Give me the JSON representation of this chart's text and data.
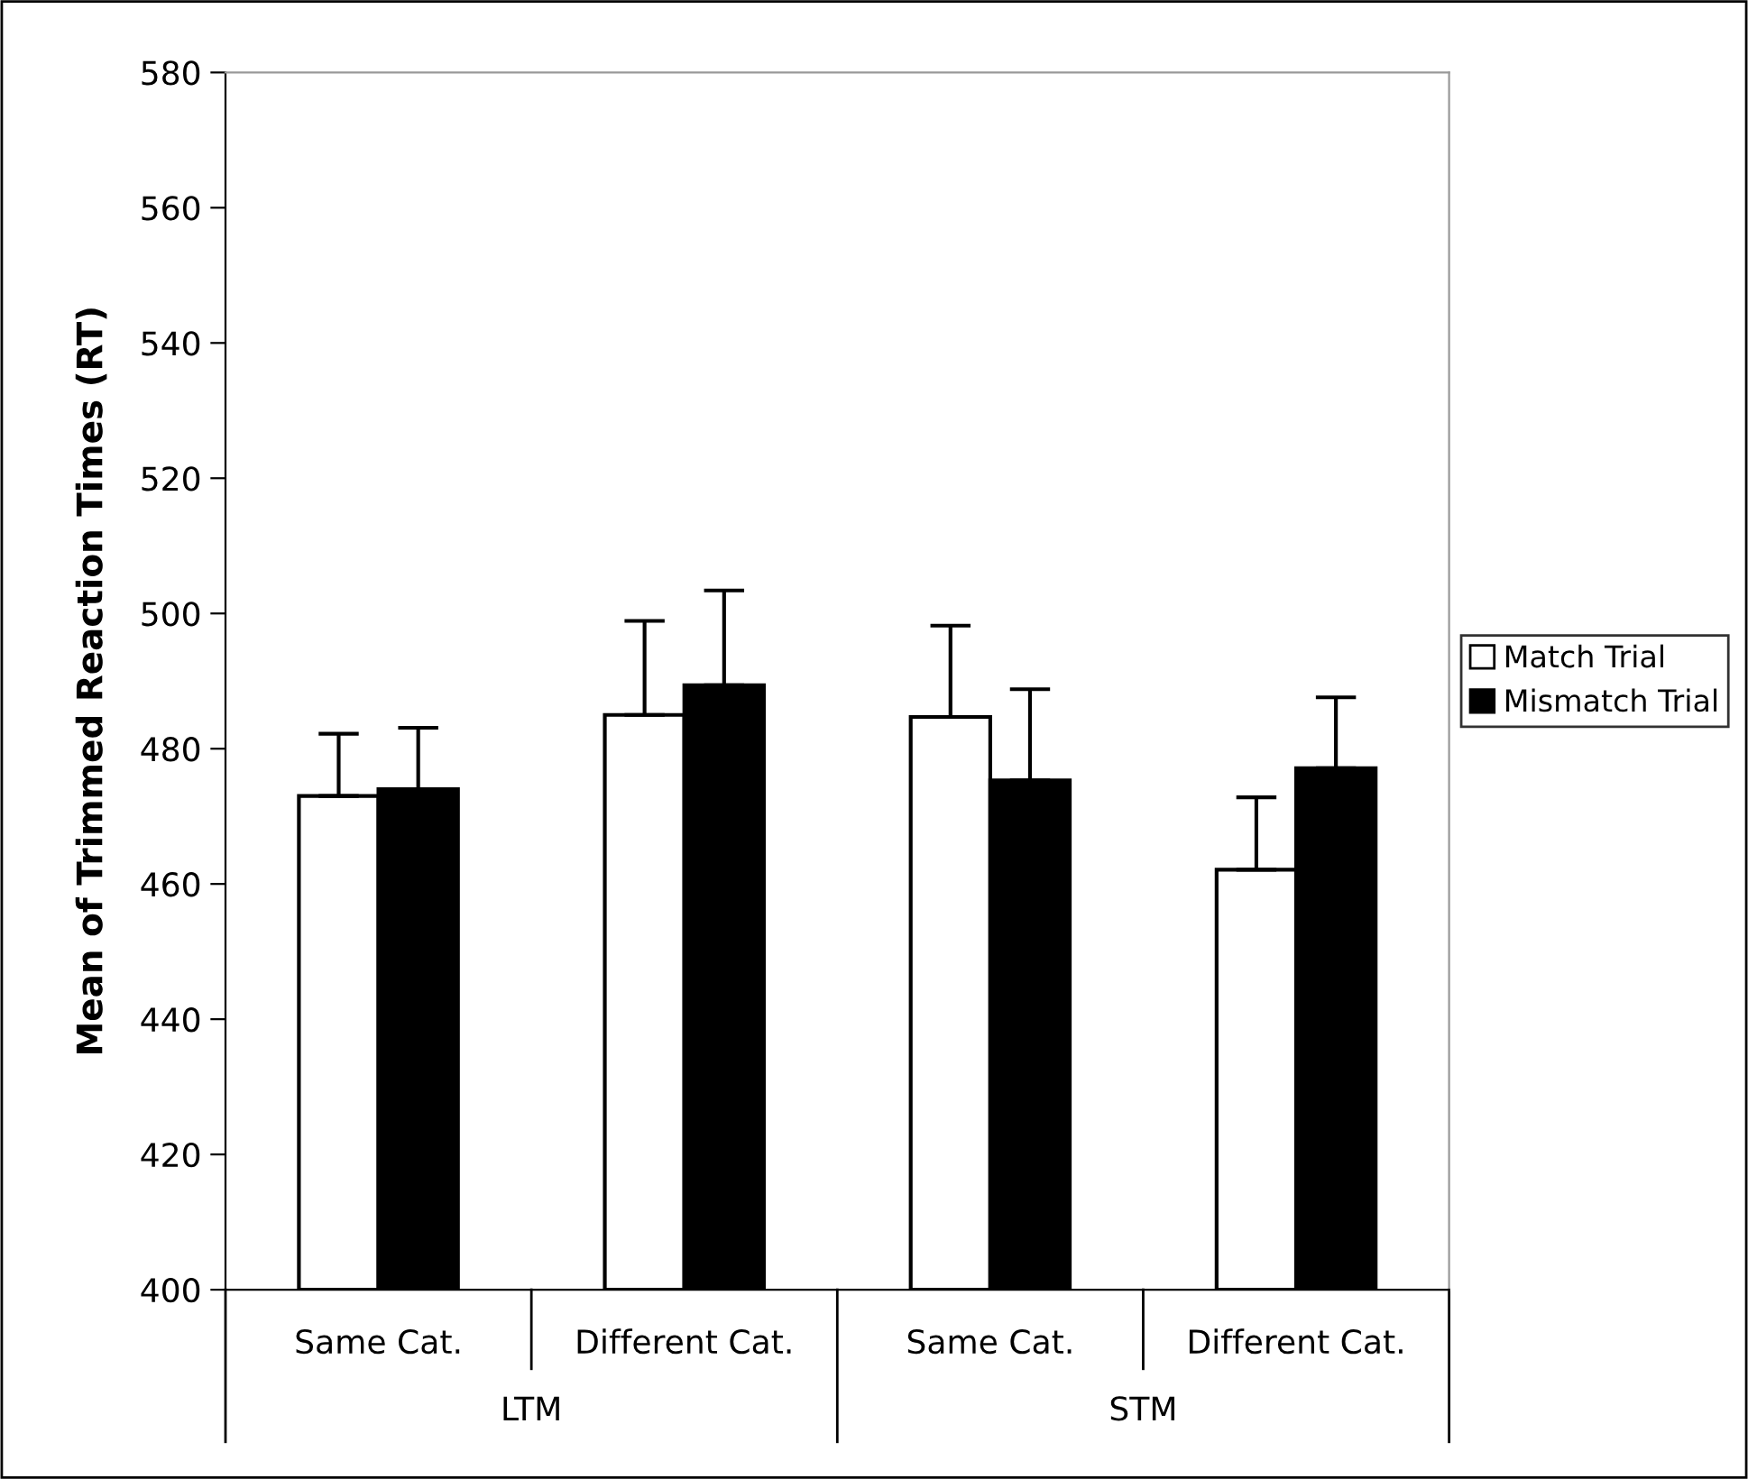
{
  "chart_data": {
    "type": "bar",
    "ylabel": "Mean of Trimmed Reaction Times (RT)",
    "categories": [
      "Same Cat.",
      "Different Cat.",
      "Same Cat.",
      "Different Cat."
    ],
    "annotations": [
      "LTM",
      "STM"
    ],
    "series": [
      {
        "name": "Match Trial",
        "color": "#ffffff",
        "values": [
          473.0,
          485.0,
          484.7,
          462.1
        ],
        "errors": [
          [
            473.0,
            482.2
          ],
          [
            485.0,
            498.9
          ],
          [
            484.7,
            498.2
          ],
          [
            462.1,
            472.8
          ]
        ]
      },
      {
        "name": "Mismatch Trial",
        "color": "#000000",
        "values": [
          474.0,
          489.4,
          475.3,
          477.1
        ],
        "errors": [
          [
            474.0,
            483.1
          ],
          [
            489.4,
            503.4
          ],
          [
            475.3,
            488.8
          ],
          [
            477.1,
            487.6
          ]
        ]
      }
    ],
    "ylim": [
      400,
      580
    ],
    "yticks": [
      400,
      420,
      440,
      460,
      480,
      500,
      520,
      540,
      560,
      580
    ],
    "grid": false,
    "legend": "right"
  }
}
